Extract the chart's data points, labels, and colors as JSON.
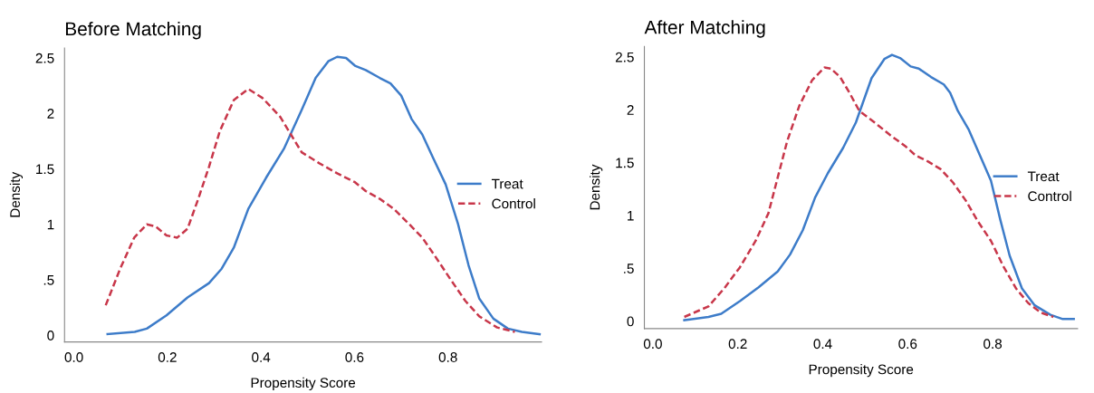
{
  "chart_data": [
    {
      "type": "line",
      "title": "Before Matching",
      "xlabel": "Propensity Score",
      "ylabel": "Density",
      "xlim": [
        -0.02,
        1.0
      ],
      "ylim": [
        -0.06,
        2.59
      ],
      "xticks": [
        {
          "value": 0,
          "label": "0.0"
        },
        {
          "value": 0.2,
          "label": "0.2"
        },
        {
          "value": 0.4,
          "label": "0.4"
        },
        {
          "value": 0.6,
          "label": "0.6"
        },
        {
          "value": 0.8,
          "label": "0.8"
        }
      ],
      "yticks": [
        0,
        {
          "value": 0.5,
          "label": ".5"
        },
        1,
        1.5,
        2,
        2.5
      ],
      "grid": false,
      "legend": "right",
      "series": [
        {
          "name": "Treat",
          "color": "#3d7cc9",
          "line_style": "solid",
          "x": [
            0.072,
            0.13,
            0.156,
            0.198,
            0.243,
            0.289,
            0.316,
            0.342,
            0.373,
            0.411,
            0.449,
            0.487,
            0.517,
            0.544,
            0.563,
            0.582,
            0.601,
            0.624,
            0.654,
            0.677,
            0.7,
            0.722,
            0.745,
            0.768,
            0.795,
            0.821,
            0.844,
            0.867,
            0.897,
            0.928,
            0.958,
            0.996
          ],
          "values": [
            0.01,
            0.03,
            0.06,
            0.18,
            0.34,
            0.47,
            0.6,
            0.79,
            1.14,
            1.42,
            1.68,
            2.03,
            2.32,
            2.47,
            2.51,
            2.5,
            2.43,
            2.39,
            2.32,
            2.27,
            2.16,
            1.95,
            1.81,
            1.6,
            1.36,
            1.01,
            0.63,
            0.33,
            0.15,
            0.06,
            0.03,
            0.01
          ]
        },
        {
          "name": "Control",
          "color": "#c8374a",
          "line_style": "dashed",
          "x": [
            0.068,
            0.099,
            0.129,
            0.156,
            0.175,
            0.198,
            0.221,
            0.243,
            0.266,
            0.289,
            0.312,
            0.342,
            0.373,
            0.403,
            0.441,
            0.464,
            0.487,
            0.525,
            0.563,
            0.601,
            0.624,
            0.654,
            0.684,
            0.715,
            0.745,
            0.776,
            0.806,
            0.837,
            0.867,
            0.905,
            0.943
          ],
          "values": [
            0.27,
            0.6,
            0.88,
            1.0,
            0.98,
            0.9,
            0.88,
            0.96,
            1.23,
            1.52,
            1.84,
            2.12,
            2.22,
            2.14,
            1.97,
            1.81,
            1.65,
            1.55,
            1.46,
            1.38,
            1.3,
            1.23,
            1.14,
            1.01,
            0.88,
            0.69,
            0.5,
            0.31,
            0.17,
            0.07,
            0.03
          ]
        }
      ]
    },
    {
      "type": "line",
      "title": "After Matching",
      "xlabel": "Propensity Score",
      "ylabel": "Density",
      "xlim": [
        -0.02,
        1.0
      ],
      "ylim": [
        -0.07,
        2.6
      ],
      "xticks": [
        {
          "value": 0,
          "label": "0.0"
        },
        {
          "value": 0.2,
          "label": "0.2"
        },
        {
          "value": 0.4,
          "label": "0.4"
        },
        {
          "value": 0.6,
          "label": "0.6"
        },
        {
          "value": 0.8,
          "label": "0.8"
        }
      ],
      "yticks": [
        0,
        {
          "value": 0.5,
          "label": ".5"
        },
        1,
        1.5,
        2,
        2.5
      ],
      "grid": false,
      "legend": "right",
      "series": [
        {
          "name": "Treat",
          "color": "#3d7cc9",
          "line_style": "solid",
          "x": [
            0.074,
            0.131,
            0.161,
            0.205,
            0.249,
            0.294,
            0.323,
            0.353,
            0.382,
            0.412,
            0.448,
            0.478,
            0.515,
            0.545,
            0.563,
            0.582,
            0.607,
            0.626,
            0.655,
            0.685,
            0.7,
            0.718,
            0.744,
            0.77,
            0.796,
            0.818,
            0.84,
            0.869,
            0.899,
            0.936,
            0.965,
            0.991
          ],
          "values": [
            0.01,
            0.04,
            0.07,
            0.19,
            0.32,
            0.47,
            0.63,
            0.86,
            1.17,
            1.4,
            1.64,
            1.88,
            2.3,
            2.48,
            2.52,
            2.49,
            2.41,
            2.39,
            2.31,
            2.24,
            2.16,
            1.99,
            1.81,
            1.57,
            1.33,
            0.96,
            0.62,
            0.31,
            0.15,
            0.06,
            0.02,
            0.02
          ]
        },
        {
          "name": "Control",
          "color": "#c8374a",
          "line_style": "dashed",
          "x": [
            0.074,
            0.131,
            0.168,
            0.205,
            0.242,
            0.272,
            0.294,
            0.316,
            0.345,
            0.375,
            0.404,
            0.419,
            0.441,
            0.463,
            0.486,
            0.522,
            0.559,
            0.596,
            0.618,
            0.648,
            0.677,
            0.707,
            0.737,
            0.766,
            0.796,
            0.825,
            0.855,
            0.884,
            0.914,
            0.943
          ],
          "values": [
            0.04,
            0.14,
            0.31,
            0.51,
            0.76,
            1.02,
            1.36,
            1.7,
            2.04,
            2.28,
            2.4,
            2.39,
            2.31,
            2.16,
            1.99,
            1.88,
            1.76,
            1.65,
            1.57,
            1.51,
            1.44,
            1.31,
            1.14,
            0.94,
            0.76,
            0.52,
            0.31,
            0.17,
            0.08,
            0.04
          ]
        }
      ]
    }
  ]
}
